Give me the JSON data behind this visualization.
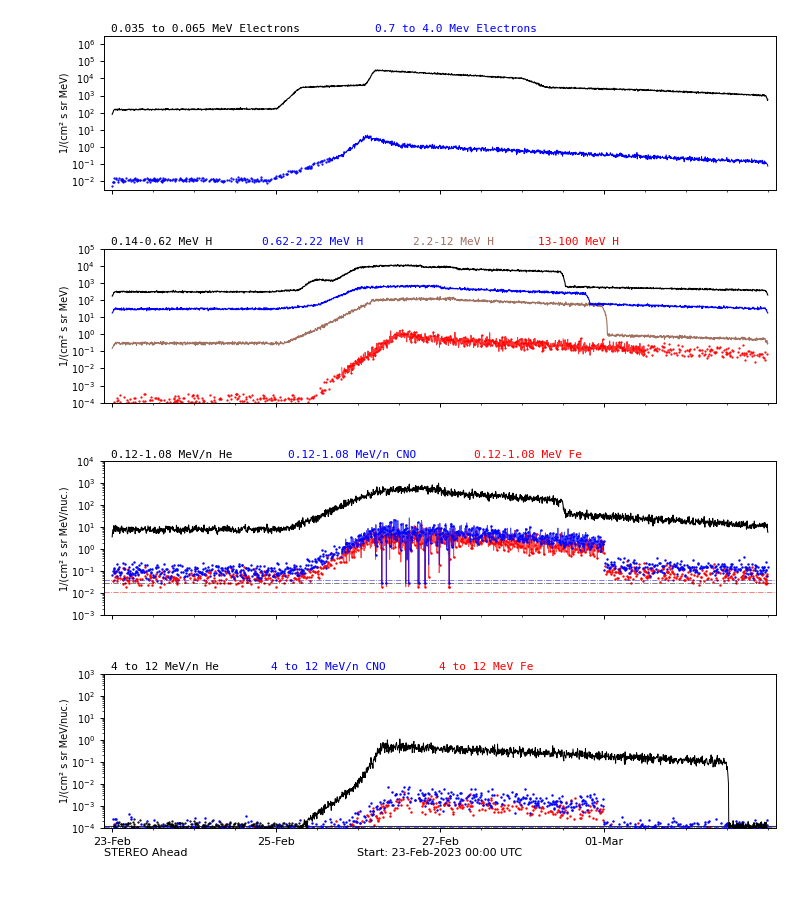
{
  "title_panel1_black": "0.035 to 0.065 MeV Electrons",
  "title_panel1_blue": "0.7 to 4.0 Mev Electrons",
  "title_panel2_black": "0.14-0.62 MeV H",
  "title_panel2_blue": "0.62-2.22 MeV H",
  "title_panel2_tan": "2.2-12 MeV H",
  "title_panel2_red": "13-100 MeV H",
  "title_panel3_black": "0.12-1.08 MeV/n He",
  "title_panel3_blue": "0.12-1.08 MeV/n CNO",
  "title_panel3_red": "0.12-1.08 MeV Fe",
  "title_panel4_black": "4 to 12 MeV/n He",
  "title_panel4_blue": "4 to 12 MeV/n CNO",
  "title_panel4_red": "4 to 12 MeV Fe",
  "ylabel_panel1": "1/(cm² s sr MeV)",
  "ylabel_panel2": "1/(cm² s sr MeV)",
  "ylabel_panel3": "1/(cm² s sr MeV/nuc.)",
  "ylabel_panel4": "1/(cm² s sr MeV/nuc.)",
  "xlabel": "Start: 23-Feb-2023 00:00 UTC",
  "xlabel_left": "STEREO Ahead",
  "xtick_labels": [
    "23-Feb",
    "25-Feb",
    "27-Feb",
    "01-Mar"
  ],
  "xtick_pos": [
    0,
    2,
    4,
    6
  ],
  "panel1_ylim": [
    0.003,
    3000000.0
  ],
  "panel2_ylim": [
    0.0001,
    100000.0
  ],
  "panel3_ylim": [
    0.001,
    10000.0
  ],
  "panel4_ylim": [
    0.0001,
    1000.0
  ],
  "color_black": "#000000",
  "color_blue": "#0000FF",
  "color_red": "#FF0000",
  "color_tan": "#A07060",
  "bg_color": "#FFFFFF",
  "n_points": 2000
}
